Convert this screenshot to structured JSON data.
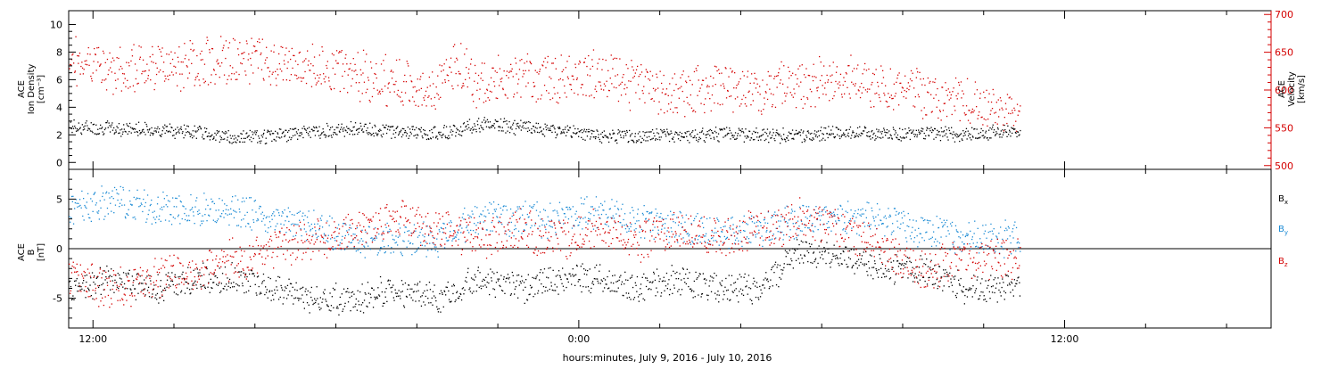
{
  "chart_data": [
    {
      "type": "scatter",
      "title": "",
      "x_axis": {
        "label": "hours:minutes, July  9, 2016 - July 10, 2016",
        "tick_labels": [
          "12:00",
          "0:00",
          "12:00"
        ],
        "tick_hours": [
          12,
          24,
          36
        ],
        "range_hours": [
          11.4,
          41.1
        ]
      },
      "left_axis": {
        "label_lines": [
          "ACE",
          "Ion Density",
          "[cm⁻³]"
        ],
        "ylim": [
          -0.5,
          11
        ],
        "ticks": [
          0,
          2,
          4,
          6,
          8,
          10
        ]
      },
      "right_axis": {
        "label_lines": [
          "ACE",
          "Velocity",
          "[km/s]"
        ],
        "ylim": [
          495,
          705
        ],
        "ticks": [
          500,
          550,
          600,
          650,
          700
        ],
        "color": "#d40000"
      },
      "series": [
        {
          "axis": "left",
          "color": "#000000",
          "x": [
            11.5,
            12.5,
            13.5,
            14.5,
            15.5,
            16.5,
            17.5,
            18.5,
            19.5,
            20.5,
            21.5,
            22.5,
            23.5,
            24.5,
            25.5,
            26.5,
            27.5,
            28.5,
            29.5,
            30.5,
            31.5,
            32.5,
            33.5,
            34.5
          ],
          "y": [
            2.6,
            2.5,
            2.4,
            2.3,
            1.8,
            2.0,
            2.3,
            2.5,
            2.3,
            2.1,
            2.8,
            2.6,
            2.3,
            2.0,
            1.9,
            2.0,
            2.1,
            2.0,
            2.0,
            2.2,
            2.1,
            2.2,
            2.0,
            2.3
          ]
        },
        {
          "axis": "right",
          "color": "#d40000",
          "x": [
            11.5,
            12.5,
            13.5,
            14.5,
            15.5,
            16.5,
            17.5,
            18.5,
            19.5,
            20.5,
            21.0,
            21.5,
            22.5,
            23.5,
            24.5,
            25.5,
            26.5,
            27.5,
            28.5,
            29.5,
            30.5,
            31.5,
            32.5,
            33.5,
            34.5
          ],
          "y": [
            640,
            625,
            630,
            635,
            640,
            640,
            630,
            620,
            610,
            600,
            640,
            605,
            620,
            615,
            620,
            605,
            595,
            605,
            600,
            610,
            615,
            605,
            595,
            585,
            570
          ]
        }
      ]
    },
    {
      "type": "scatter",
      "title": "",
      "x_axis": {
        "label": "hours:minutes, July  9, 2016 - July 10, 2016",
        "tick_labels": [
          "12:00",
          "0:00",
          "12:00"
        ],
        "tick_hours": [
          12,
          24,
          36
        ],
        "range_hours": [
          11.4,
          41.1
        ]
      },
      "left_axis": {
        "label_lines": [
          "ACE",
          "B",
          "[nT]"
        ],
        "ylim": [
          -8,
          8
        ],
        "ticks": [
          -5,
          0,
          5
        ]
      },
      "legend": {
        "placement": "right",
        "entries": [
          "Bx",
          "By",
          "Bz"
        ]
      },
      "series": [
        {
          "name": "Bx",
          "color": "#000000",
          "x": [
            11.5,
            12.5,
            13.5,
            14.5,
            15.5,
            16.5,
            17.5,
            18.5,
            19.5,
            20.5,
            21.5,
            22.5,
            23.5,
            24.5,
            25.5,
            26.5,
            27.5,
            28.5,
            29.5,
            30.5,
            31.5,
            32.5,
            33.5,
            34.5
          ],
          "y": [
            -4,
            -3,
            -4,
            -3,
            -3,
            -4,
            -5,
            -5,
            -4,
            -5,
            -3,
            -4,
            -3,
            -3,
            -4,
            -3,
            -4,
            -4,
            0,
            -1,
            -2,
            -2,
            -4,
            -4
          ]
        },
        {
          "name": "By",
          "color": "#1a8ad4",
          "x": [
            11.5,
            12.5,
            13.5,
            14.5,
            15.5,
            16.5,
            17.5,
            18.5,
            19.5,
            20.5,
            21.5,
            22.5,
            23.5,
            24.5,
            25.5,
            26.5,
            27.5,
            28.5,
            29.5,
            30.5,
            31.5,
            32.5,
            33.5,
            34.5
          ],
          "y": [
            4,
            5,
            4,
            4,
            4,
            3,
            2,
            1,
            1,
            1,
            3,
            3,
            3,
            4,
            3,
            2,
            2,
            2,
            3,
            3,
            3,
            2,
            1,
            1
          ]
        },
        {
          "name": "Bz",
          "color": "#d40000",
          "x": [
            11.5,
            12.5,
            13.5,
            14.5,
            15.5,
            16.5,
            17.5,
            18.5,
            19.5,
            20.5,
            21.5,
            22.5,
            23.5,
            24.5,
            25.5,
            26.5,
            27.5,
            28.5,
            29.5,
            30.5,
            31.5,
            32.5,
            33.5,
            34.5
          ],
          "y": [
            -3,
            -4,
            -3,
            -2,
            -1,
            0,
            1,
            2,
            3,
            2,
            1,
            2,
            1,
            2,
            1,
            2,
            1,
            2,
            3,
            2,
            0,
            -2,
            -1,
            -1
          ]
        }
      ]
    }
  ]
}
